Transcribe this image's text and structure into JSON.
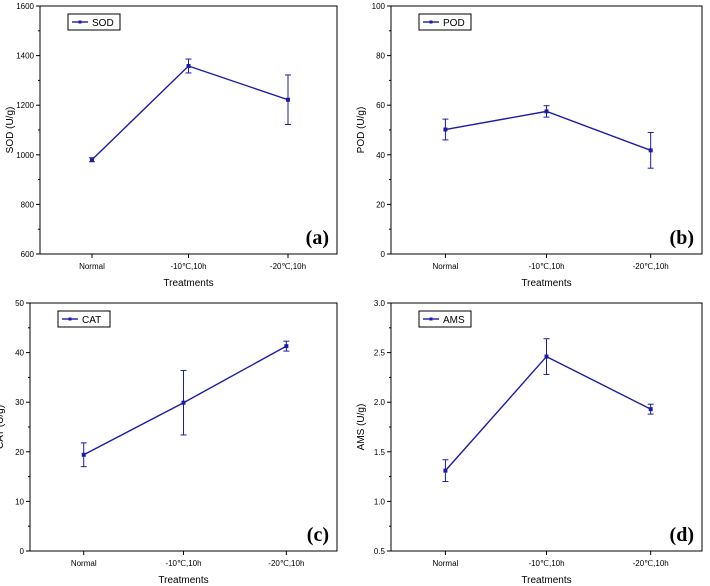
{
  "chart_data": [
    {
      "type": "line",
      "panel_label": "(a)",
      "categories": [
        "Normal",
        "-10℃,10h",
        "-20℃,10h"
      ],
      "series": [
        {
          "name": "SOD",
          "values": [
            980,
            1358,
            1222
          ],
          "errors": [
            8,
            28,
            100
          ]
        }
      ],
      "xlabel": "Treatments",
      "ylabel": "SOD (U/g)",
      "ylim": [
        600,
        1600
      ],
      "yticks": [
        "600",
        "800",
        "1000",
        "1200",
        "1400",
        "1600"
      ],
      "legend_position": "top-left",
      "color": "#1c1ca8"
    },
    {
      "type": "line",
      "panel_label": "(b)",
      "categories": [
        "Normal",
        "-10℃,10h",
        "-20℃,10h"
      ],
      "series": [
        {
          "name": "POD",
          "values": [
            50.2,
            57.5,
            41.8
          ],
          "errors": [
            4.2,
            2.3,
            7.2
          ]
        }
      ],
      "xlabel": "Treatments",
      "ylabel": "POD (U/g)",
      "ylim": [
        0,
        100
      ],
      "yticks": [
        "0",
        "20",
        "40",
        "60",
        "80",
        "100"
      ],
      "legend_position": "top-left",
      "color": "#1c1ca8"
    },
    {
      "type": "line",
      "panel_label": "(c)",
      "categories": [
        "Normal",
        "-10℃,10h",
        "-20℃,10h"
      ],
      "series": [
        {
          "name": "CAT",
          "values": [
            19.4,
            29.9,
            41.3
          ],
          "errors": [
            2.4,
            6.5,
            1.0
          ]
        }
      ],
      "xlabel": "Treatments",
      "ylabel": "CAT (U/g)",
      "ylim": [
        0,
        50
      ],
      "yticks": [
        "0",
        "10",
        "20",
        "30",
        "40",
        "50"
      ],
      "legend_position": "top-left",
      "color": "#1c1ca8"
    },
    {
      "type": "line",
      "panel_label": "(d)",
      "categories": [
        "Normal",
        "-10℃,10h",
        "-20℃,10h"
      ],
      "series": [
        {
          "name": "AMS",
          "values": [
            1.31,
            2.46,
            1.93
          ],
          "errors": [
            0.11,
            0.18,
            0.05
          ]
        }
      ],
      "xlabel": "Treatments",
      "ylabel": "AMS (U/g)",
      "ylim": [
        0.5,
        3.0
      ],
      "yticks": [
        "0.5",
        "1.0",
        "1.5",
        "2.0",
        "2.5",
        "3.0"
      ],
      "legend_position": "top-left",
      "color": "#1c1ca8"
    }
  ]
}
